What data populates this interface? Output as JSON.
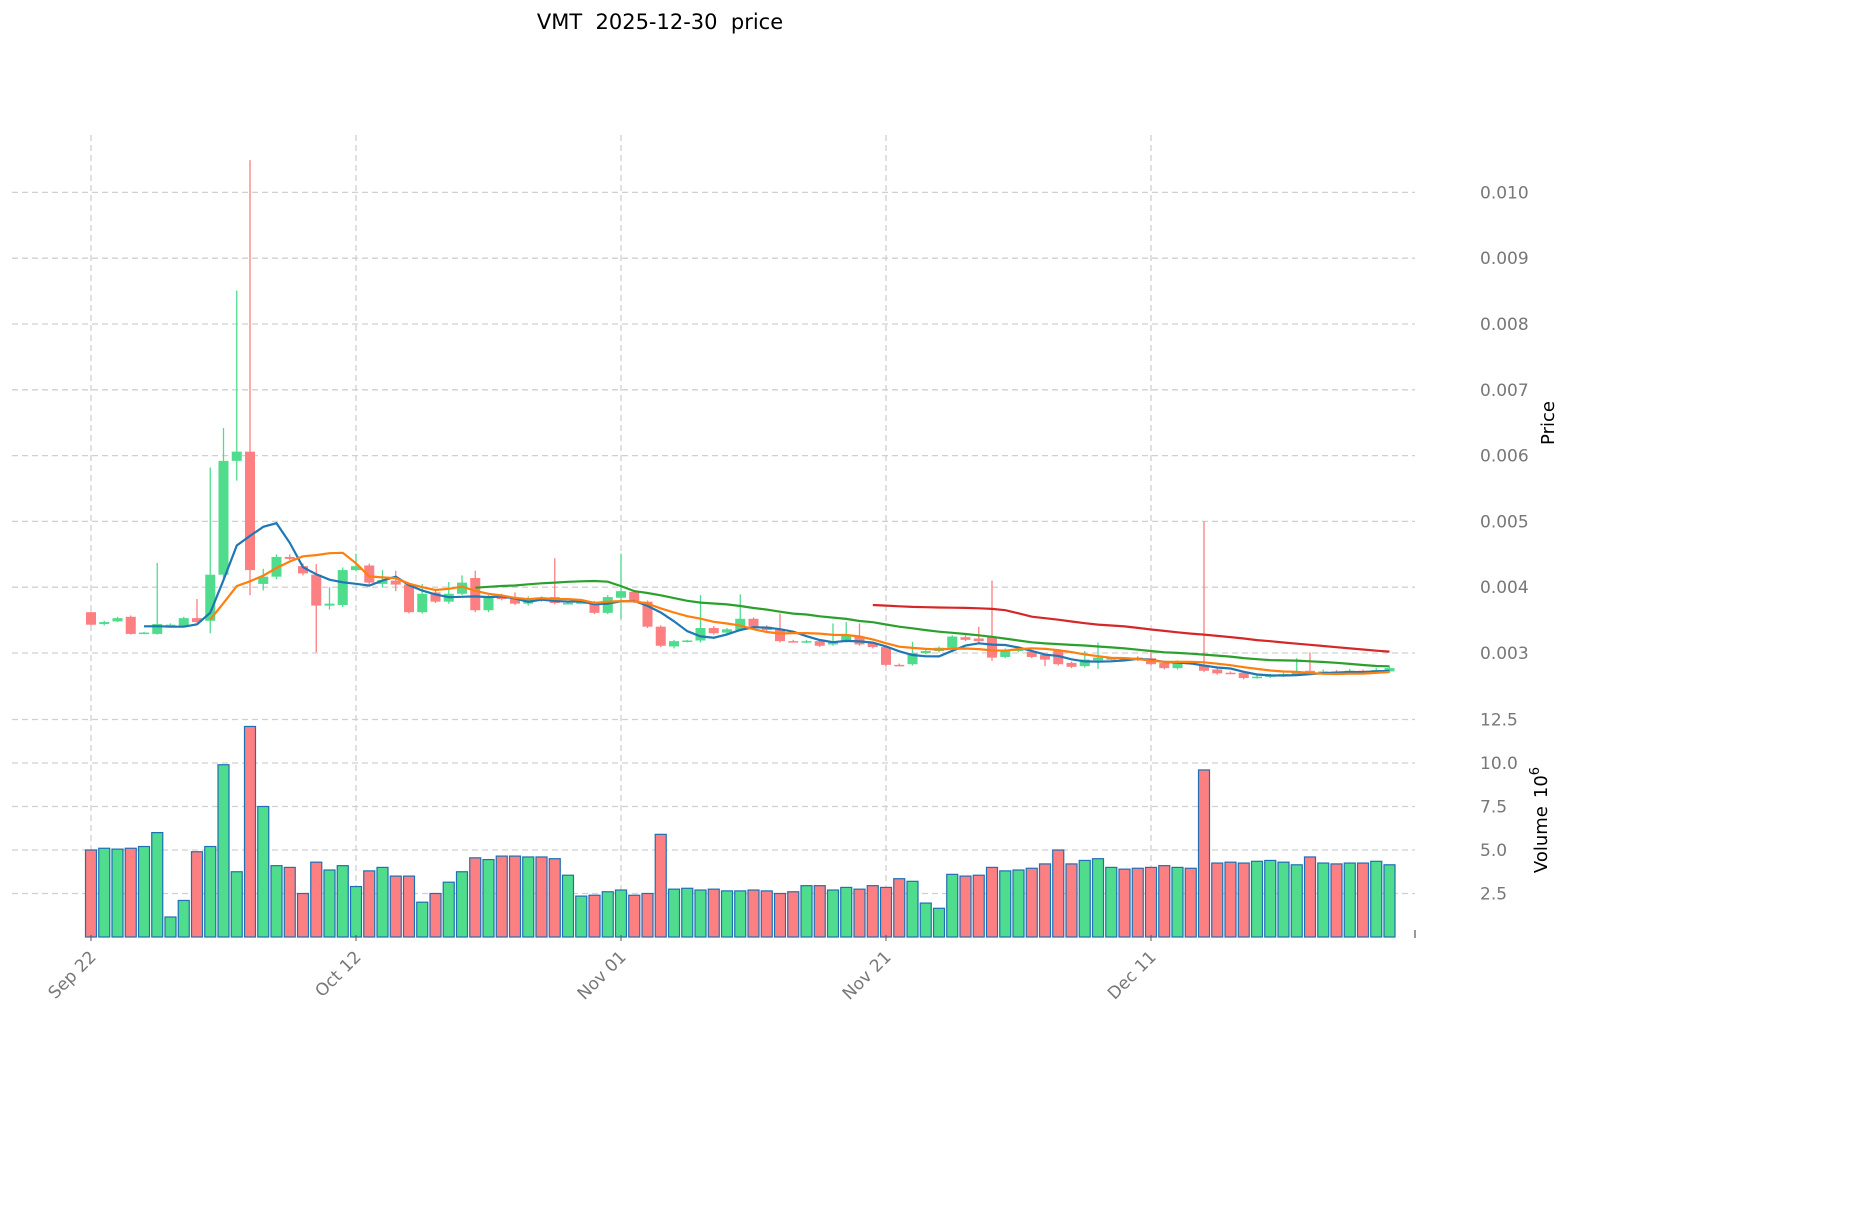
{
  "chart_data": {
    "type": "candlestick",
    "title": "VMT  2025-12-30  price",
    "ylabel": "Price",
    "volume_label": "Volume",
    "volume_exponent_label": "10",
    "volume_exponent": "6",
    "start_date": "2025-09-22",
    "x_ticks": [
      {
        "label": "Sep 22",
        "index": 0
      },
      {
        "label": "Oct 12",
        "index": 20
      },
      {
        "label": "Nov 01",
        "index": 40
      },
      {
        "label": "Nov 21",
        "index": 60
      },
      {
        "label": "Dec 11",
        "index": 80
      }
    ],
    "price_ticks": [
      "0.003",
      "0.004",
      "0.005",
      "0.006",
      "0.007",
      "0.008",
      "0.009",
      "0.010"
    ],
    "volume_ticks": [
      "2.5",
      "5.0",
      "7.5",
      "10.0",
      "12.5"
    ],
    "ylim": [
      0.0023,
      0.0107
    ],
    "volume_ylim": [
      0,
      14
    ],
    "moving_averages": [
      {
        "window": 5,
        "color": "#1f77b4"
      },
      {
        "window": 10,
        "color": "#ff7f0e"
      },
      {
        "window": 30,
        "color": "#2ca02c"
      },
      {
        "window": 60,
        "color": "#d62728"
      }
    ],
    "colors": {
      "up": "#4fdc8c",
      "down": "#fc7f82",
      "volume_edge": "#1f6fb4"
    },
    "ohlcv_fields": [
      "open",
      "high",
      "low",
      "close",
      "volume_millions"
    ],
    "ohlcv": [
      [
        0.00362,
        0.00363,
        0.00342,
        0.00343,
        5.0
      ],
      [
        0.00344,
        0.00349,
        0.00342,
        0.00347,
        5.1
      ],
      [
        0.00348,
        0.00355,
        0.00347,
        0.00353,
        5.05
      ],
      [
        0.00355,
        0.00357,
        0.00328,
        0.00329,
        5.1
      ],
      [
        0.0033,
        0.00332,
        0.00329,
        0.00331,
        5.2
      ],
      [
        0.00329,
        0.00437,
        0.00328,
        0.00344,
        6.0
      ],
      [
        0.00342,
        0.00345,
        0.0034,
        0.00343,
        1.15
      ],
      [
        0.00341,
        0.00355,
        0.0034,
        0.00353,
        2.1
      ],
      [
        0.00353,
        0.00382,
        0.00346,
        0.00347,
        4.9
      ],
      [
        0.00349,
        0.00582,
        0.0033,
        0.00419,
        5.2
      ],
      [
        0.00419,
        0.00642,
        0.0041,
        0.00592,
        9.9
      ],
      [
        0.00592,
        0.00851,
        0.00562,
        0.00606,
        3.75
      ],
      [
        0.00606,
        0.01049,
        0.00388,
        0.00426,
        12.1
      ],
      [
        0.00405,
        0.00428,
        0.00395,
        0.00416,
        7.5
      ],
      [
        0.00416,
        0.0045,
        0.00412,
        0.00446,
        4.1
      ],
      [
        0.00446,
        0.0045,
        0.00441,
        0.00443,
        4.0
      ],
      [
        0.00432,
        0.00436,
        0.00418,
        0.00421,
        2.5
      ],
      [
        0.00419,
        0.00435,
        0.00301,
        0.00372,
        4.3
      ],
      [
        0.00372,
        0.004,
        0.00366,
        0.00375,
        3.85
      ],
      [
        0.00373,
        0.0043,
        0.0037,
        0.00426,
        4.1
      ],
      [
        0.00426,
        0.00451,
        0.00424,
        0.00432,
        2.9
      ],
      [
        0.00433,
        0.00436,
        0.00404,
        0.00407,
        3.8
      ],
      [
        0.00405,
        0.00426,
        0.004,
        0.00411,
        4.0
      ],
      [
        0.0041,
        0.00425,
        0.00394,
        0.00404,
        3.5
      ],
      [
        0.00404,
        0.00406,
        0.0036,
        0.00362,
        3.5
      ],
      [
        0.00362,
        0.00405,
        0.0036,
        0.0039,
        2.0
      ],
      [
        0.00392,
        0.00396,
        0.00376,
        0.00378,
        2.5
      ],
      [
        0.00378,
        0.00408,
        0.00375,
        0.0039,
        3.15
      ],
      [
        0.0039,
        0.00418,
        0.00388,
        0.00407,
        3.75
      ],
      [
        0.00414,
        0.00425,
        0.00362,
        0.00365,
        4.55
      ],
      [
        0.00365,
        0.00388,
        0.00362,
        0.00385,
        4.45
      ],
      [
        0.00387,
        0.0039,
        0.0038,
        0.00382,
        4.65
      ],
      [
        0.00384,
        0.00392,
        0.00373,
        0.00375,
        4.65
      ],
      [
        0.00375,
        0.00386,
        0.00372,
        0.00383,
        4.6
      ],
      [
        0.00383,
        0.00386,
        0.00378,
        0.0038,
        4.6
      ],
      [
        0.00385,
        0.00444,
        0.00374,
        0.00376,
        4.5
      ],
      [
        0.00376,
        0.00378,
        0.00374,
        0.00376,
        3.55
      ],
      [
        0.00376,
        0.0038,
        0.00374,
        0.00377,
        2.35
      ],
      [
        0.00376,
        0.00379,
        0.00359,
        0.00361,
        2.4
      ],
      [
        0.00361,
        0.00388,
        0.00359,
        0.00385,
        2.6
      ],
      [
        0.00384,
        0.00451,
        0.00352,
        0.00394,
        2.7
      ],
      [
        0.00393,
        0.00396,
        0.00376,
        0.00378,
        2.4
      ],
      [
        0.00378,
        0.0038,
        0.00338,
        0.0034,
        2.5
      ],
      [
        0.0034,
        0.00342,
        0.00309,
        0.00311,
        5.9
      ],
      [
        0.0031,
        0.0032,
        0.00307,
        0.00318,
        2.75
      ],
      [
        0.00318,
        0.0032,
        0.00316,
        0.00319,
        2.8
      ],
      [
        0.00319,
        0.00388,
        0.00316,
        0.00338,
        2.7
      ],
      [
        0.00338,
        0.00341,
        0.00328,
        0.0033,
        2.75
      ],
      [
        0.00331,
        0.00338,
        0.00329,
        0.00336,
        2.65
      ],
      [
        0.00335,
        0.00389,
        0.00333,
        0.00352,
        2.65
      ],
      [
        0.00352,
        0.00354,
        0.00338,
        0.0034,
        2.7
      ],
      [
        0.0034,
        0.00342,
        0.00333,
        0.00335,
        2.65
      ],
      [
        0.00335,
        0.0036,
        0.00316,
        0.00318,
        2.5
      ],
      [
        0.00318,
        0.0032,
        0.00316,
        0.00317,
        2.6
      ],
      [
        0.00317,
        0.0032,
        0.00315,
        0.00318,
        2.95
      ],
      [
        0.00318,
        0.0032,
        0.00309,
        0.00311,
        2.95
      ],
      [
        0.00313,
        0.00345,
        0.00311,
        0.00318,
        2.7
      ],
      [
        0.00318,
        0.00347,
        0.00316,
        0.00328,
        2.85
      ],
      [
        0.00325,
        0.00345,
        0.00311,
        0.00313,
        2.75
      ],
      [
        0.00315,
        0.00317,
        0.00307,
        0.00309,
        2.95
      ],
      [
        0.00309,
        0.00311,
        0.0028,
        0.00282,
        2.85
      ],
      [
        0.00282,
        0.00284,
        0.0028,
        0.00281,
        3.35
      ],
      [
        0.00283,
        0.00317,
        0.00281,
        0.003,
        3.2
      ],
      [
        0.003,
        0.00305,
        0.00298,
        0.00303,
        1.95
      ],
      [
        0.00303,
        0.0031,
        0.00301,
        0.00308,
        1.65
      ],
      [
        0.00308,
        0.00327,
        0.00306,
        0.00325,
        3.6
      ],
      [
        0.00324,
        0.00327,
        0.00318,
        0.0032,
        3.5
      ],
      [
        0.00322,
        0.0034,
        0.00316,
        0.00318,
        3.55
      ],
      [
        0.00325,
        0.0041,
        0.00288,
        0.00293,
        4.0
      ],
      [
        0.00294,
        0.00307,
        0.00292,
        0.00305,
        3.8
      ],
      [
        0.00303,
        0.00308,
        0.00301,
        0.00306,
        3.85
      ],
      [
        0.00302,
        0.00304,
        0.00292,
        0.00294,
        3.95
      ],
      [
        0.00297,
        0.00299,
        0.0028,
        0.0029,
        4.2
      ],
      [
        0.00304,
        0.00306,
        0.00281,
        0.00283,
        5.0
      ],
      [
        0.00285,
        0.00287,
        0.00277,
        0.00279,
        4.2
      ],
      [
        0.0028,
        0.00303,
        0.00278,
        0.0029,
        4.4
      ],
      [
        0.00289,
        0.00316,
        0.00276,
        0.00293,
        4.5
      ],
      [
        0.00291,
        0.00294,
        0.00289,
        0.00292,
        4.0
      ],
      [
        0.00292,
        0.00294,
        0.00288,
        0.0029,
        3.9
      ],
      [
        0.00293,
        0.00295,
        0.00288,
        0.0029,
        3.95
      ],
      [
        0.00292,
        0.00303,
        0.00281,
        0.00283,
        4.0
      ],
      [
        0.00285,
        0.00287,
        0.00275,
        0.00277,
        4.1
      ],
      [
        0.00277,
        0.00289,
        0.00275,
        0.00287,
        4.0
      ],
      [
        0.00285,
        0.00287,
        0.00282,
        0.00284,
        3.95
      ],
      [
        0.00282,
        0.005,
        0.00271,
        0.00273,
        9.6
      ],
      [
        0.00275,
        0.00277,
        0.00267,
        0.00269,
        4.25
      ],
      [
        0.0027,
        0.00272,
        0.00268,
        0.00269,
        4.3
      ],
      [
        0.0027,
        0.00272,
        0.0026,
        0.00262,
        4.25
      ],
      [
        0.00263,
        0.00266,
        0.00261,
        0.00264,
        4.35
      ],
      [
        0.00264,
        0.00268,
        0.00262,
        0.00266,
        4.4
      ],
      [
        0.00266,
        0.0027,
        0.00264,
        0.00268,
        4.3
      ],
      [
        0.00267,
        0.00292,
        0.00265,
        0.00272,
        4.15
      ],
      [
        0.00273,
        0.00301,
        0.00267,
        0.00269,
        4.6
      ],
      [
        0.00269,
        0.00275,
        0.00267,
        0.00272,
        4.25
      ],
      [
        0.00272,
        0.00274,
        0.00268,
        0.0027,
        4.2
      ],
      [
        0.0027,
        0.00276,
        0.00268,
        0.00273,
        4.25
      ],
      [
        0.00273,
        0.00275,
        0.00269,
        0.00271,
        4.25
      ],
      [
        0.00271,
        0.00277,
        0.00269,
        0.00274,
        4.35
      ],
      [
        0.00272,
        0.00279,
        0.0027,
        0.00277,
        4.15
      ]
    ]
  }
}
